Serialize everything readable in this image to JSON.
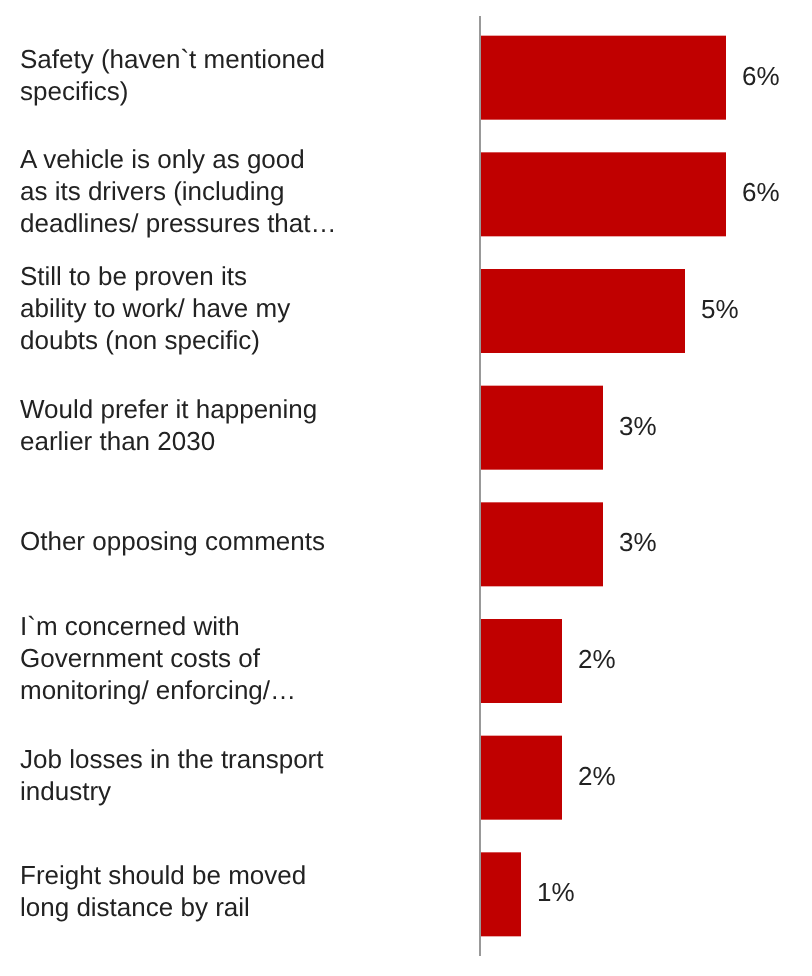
{
  "chart_data": {
    "type": "bar",
    "orientation": "horizontal",
    "categories": [
      "Safety (haven`t mentioned specifics)",
      "A vehicle is only as good as its drivers (including deadlines/ pressures that…",
      "Still to be proven its ability to work/ have my doubts (non specific)",
      "Would prefer it happening earlier than 2030",
      "Other opposing comments",
      "I`m concerned with Government costs of monitoring/ enforcing/…",
      "Job losses in the transport industry",
      "Freight should be moved long distance by rail"
    ],
    "values": [
      6,
      6,
      5,
      3,
      3,
      2,
      2,
      1
    ],
    "value_labels": [
      "6%",
      "6%",
      "5%",
      "3%",
      "3%",
      "2%",
      "2%",
      "1%"
    ],
    "color": "#c00000"
  }
}
